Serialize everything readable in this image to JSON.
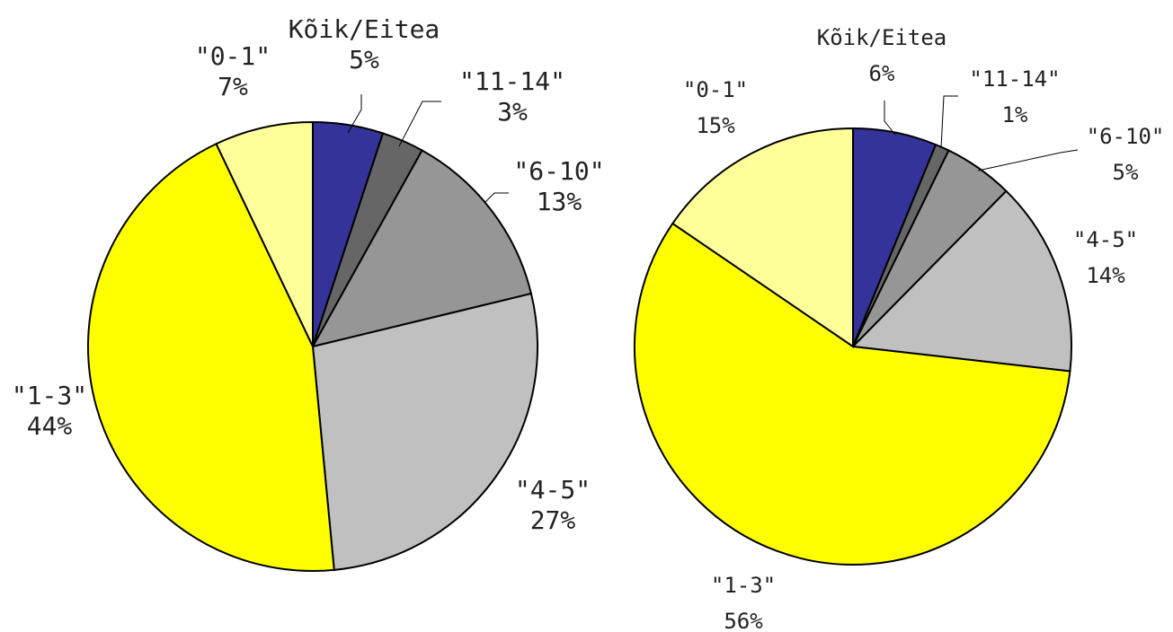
{
  "colors": {
    "Kõik/Eitea": "#333399",
    "\"11-14\"": "#666666",
    "\"6-10\"": "#969696",
    "\"4-5\"": "#c0c0c0",
    "\"1-3\"": "#ffff00",
    "\"0-1\"": "#ffff99"
  },
  "chart_data": [
    {
      "type": "pie",
      "title": "",
      "slices": [
        {
          "label": "Kõik/Eitea",
          "value": 5,
          "pct": "5%"
        },
        {
          "label": "\"11-14\"",
          "value": 3,
          "pct": "3%"
        },
        {
          "label": "\"6-10\"",
          "value": 13,
          "pct": "13%"
        },
        {
          "label": "\"4-5\"",
          "value": 27,
          "pct": "27%"
        },
        {
          "label": "\"1-3\"",
          "value": 44,
          "pct": "44%"
        },
        {
          "label": "\"0-1\"",
          "value": 7,
          "pct": "7%"
        }
      ]
    },
    {
      "type": "pie",
      "title": "",
      "slices": [
        {
          "label": "Kõik/Eitea",
          "value": 6,
          "pct": "6%"
        },
        {
          "label": "\"11-14\"",
          "value": 1,
          "pct": "1%"
        },
        {
          "label": "\"6-10\"",
          "value": 5,
          "pct": "5%"
        },
        {
          "label": "\"4-5\"",
          "value": 14,
          "pct": "14%"
        },
        {
          "label": "\"1-3\"",
          "value": 56,
          "pct": "56%"
        },
        {
          "label": "\"0-1\"",
          "value": 15,
          "pct": "15%"
        }
      ]
    }
  ]
}
